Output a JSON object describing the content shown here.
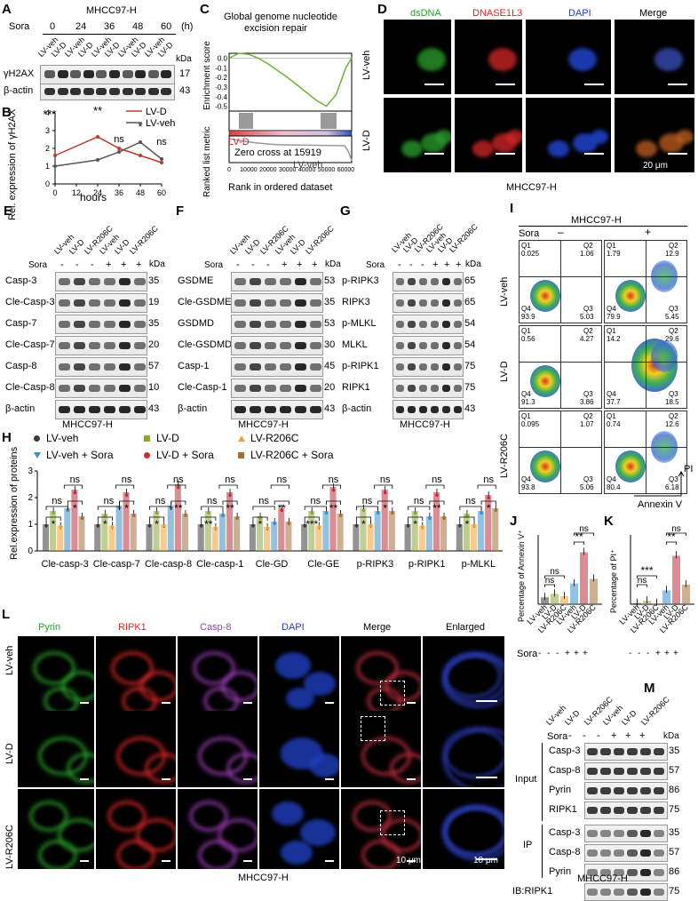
{
  "panels": {
    "A": {
      "letter": "A",
      "title": "MHCC97-H",
      "sora_label": "Sora",
      "timepoints": [
        "0",
        "24",
        "36",
        "48",
        "60"
      ],
      "unit": "(h)",
      "lanes": [
        "LV-veh",
        "LV-D",
        "LV-veh",
        "LV-D",
        "LV-veh",
        "LV-D",
        "LV-veh",
        "LV-D",
        "LV-veh",
        "LV-D"
      ],
      "kda": "kDa",
      "rows": [
        {
          "label": "γH2AX",
          "kda": "17"
        },
        {
          "label": "β-actin",
          "kda": "43"
        }
      ]
    },
    "B": {
      "letter": "B",
      "ylabel": "Rel. expression of γH2AX",
      "xlabel": "hours",
      "sig": [
        "***",
        "**",
        "ns",
        "*",
        "ns"
      ]
    },
    "C": {
      "letter": "C",
      "title_line1": "Global genome nucleotide",
      "title_line2": "excision repair",
      "ylabel_top": "Enrichment score",
      "ylabel_bottom": "Ranked list metric",
      "xlabel": "Rank in ordered dataset",
      "left_group": "LV-D",
      "right_group": "LV-veh",
      "zero_cross": "Zero cross at 15919"
    },
    "D": {
      "letter": "D",
      "columns": [
        "dsDNA",
        "DNASE1L3",
        "DAPI",
        "Merge"
      ],
      "column_colors": [
        "#2ca02c",
        "#d62728",
        "#1f3fbf",
        "#000000"
      ],
      "rows": [
        "LV-veh",
        "LV-D"
      ],
      "scale": "20 μm",
      "caption": "MHCC97-H"
    },
    "E": {
      "letter": "E",
      "lanes": [
        "LV-veh",
        "LV-D",
        "LV-R206C",
        "LV-veh",
        "LV-D",
        "LV-R206C"
      ],
      "sora_label": "Sora",
      "sora_signs": [
        "-",
        "-",
        "-",
        "+",
        "+",
        "+"
      ],
      "kda": "kDa",
      "rows": [
        {
          "label": "Casp-3",
          "kda": "35"
        },
        {
          "label": "Cle-Casp-3",
          "kda": "19"
        },
        {
          "label": "Casp-7",
          "kda": "35"
        },
        {
          "label": "Cle-Casp-7",
          "kda": "20"
        },
        {
          "label": "Casp-8",
          "kda": "57"
        },
        {
          "label": "Cle-Casp-8",
          "kda": "10"
        },
        {
          "label": "β-actin",
          "kda": "43"
        }
      ],
      "caption": "MHCC97-H"
    },
    "F": {
      "letter": "F",
      "lanes": [
        "LV-veh",
        "LV-D",
        "LV-R206C",
        "LV-veh",
        "LV-D",
        "LV-R206C"
      ],
      "sora_label": "Sora",
      "sora_signs": [
        "-",
        "-",
        "-",
        "+",
        "+",
        "+"
      ],
      "kda": "kDa",
      "rows": [
        {
          "label": "GSDME",
          "kda": "53"
        },
        {
          "label": "Cle-GSDME",
          "kda": "35"
        },
        {
          "label": "GSDMD",
          "kda": "53"
        },
        {
          "label": "Cle-GSDMD",
          "kda": "30"
        },
        {
          "label": "Casp-1",
          "kda": "45"
        },
        {
          "label": "Cle-Casp-1",
          "kda": "20"
        },
        {
          "label": "β-actin",
          "kda": "43"
        }
      ],
      "caption": "MHCC97-H"
    },
    "G": {
      "letter": "G",
      "lanes": [
        "LV-veh",
        "LV-D",
        "LV-R206C",
        "LV-veh",
        "LV-D",
        "LV-R206C"
      ],
      "sora_label": "Sora",
      "sora_signs": [
        "-",
        "-",
        "-",
        "+",
        "+",
        "+"
      ],
      "kda": "kDa",
      "rows": [
        {
          "label": "p-RIPK3",
          "kda": "65"
        },
        {
          "label": "RIPK3",
          "kda": "65"
        },
        {
          "label": "p-MLKL",
          "kda": "54"
        },
        {
          "label": "MLKL",
          "kda": "54"
        },
        {
          "label": "p-RIPK1",
          "kda": "75"
        },
        {
          "label": "RIPK1",
          "kda": "75"
        },
        {
          "label": "β-actin",
          "kda": "43"
        }
      ],
      "caption": "MHCC97-H"
    },
    "H": {
      "letter": "H",
      "ylabel": "Rel.expression of proteins",
      "legend": [
        "LV-veh",
        "LV-D",
        "LV-R206C",
        "LV-veh + Sora",
        "LV-D + Sora",
        "LV-R206C + Sora"
      ]
    },
    "I": {
      "letter": "I",
      "title": "MHCC97-H",
      "sora_label": "Sora",
      "sora_signs": [
        "–",
        "+"
      ],
      "rows": [
        "LV-veh",
        "LV-D",
        "LV-R206C"
      ],
      "quadrants": [
        [
          {
            "q1": "0.025",
            "q2": "1.06",
            "q3": "5.03",
            "q4": "93.9"
          },
          {
            "q1": "1.79",
            "q2": "12.9",
            "q3": "5.45",
            "q4": "79.9"
          }
        ],
        [
          {
            "q1": "0.56",
            "q2": "4.27",
            "q3": "3.86",
            "q4": "91.3"
          },
          {
            "q1": "14.2",
            "q2": "29.6",
            "q3": "18.5",
            "q4": "37.7"
          }
        ],
        [
          {
            "q1": "0.095",
            "q2": "1.07",
            "q3": "5.06",
            "q4": "93.8"
          },
          {
            "q1": "0.74",
            "q2": "12.6",
            "q3": "6.18",
            "q4": "80.4"
          }
        ]
      ],
      "xaxis": "Annexin V",
      "yaxis": "PI"
    },
    "J": {
      "letter": "J",
      "ylabel": "Percentage of Annexin V⁺",
      "groups": [
        "LV-veh",
        "LV-D",
        "LV-R206C",
        "LV-veh",
        "LV-D",
        "LV-R206C"
      ],
      "sig": [
        "ns",
        "ns",
        "ns",
        "**"
      ]
    },
    "K": {
      "letter": "K",
      "ylabel": "Percentage of PI⁺",
      "groups": [
        "LV-veh",
        "LV-D",
        "LV-R206C",
        "LV-veh",
        "LV-D",
        "LV-R206C"
      ],
      "sig": [
        "ns",
        "***",
        "ns",
        "**"
      ]
    },
    "JK_sora": {
      "label": "Sora",
      "signs": [
        "-",
        "-",
        "-",
        "+",
        "+",
        "+"
      ]
    },
    "L": {
      "letter": "L",
      "columns": [
        "Pyrin",
        "RIPK1",
        "Casp-8",
        "DAPI",
        "Merge",
        "Enlarged"
      ],
      "column_colors": [
        "#2ca02c",
        "#d62728",
        "#9b3fb5",
        "#1f3fbf",
        "#000000",
        "#000000"
      ],
      "rows": [
        "LV-veh",
        "LV-D",
        "LV-R206C"
      ],
      "scale1": "10 μm",
      "scale2": "10 μm",
      "caption": "MHCC97-H"
    },
    "M": {
      "letter": "M",
      "lanes": [
        "LV-veh",
        "LV-D",
        "LV-R206C",
        "LV-veh",
        "LV-D",
        "LV-R206C"
      ],
      "sora_label": "Sora",
      "sora_signs": [
        "-",
        "-",
        "-",
        "+",
        "+",
        "+"
      ],
      "kda": "kDa",
      "input_label": "Input",
      "ip_label": "IP",
      "input_rows": [
        {
          "label": "Casp-3",
          "kda": "35"
        },
        {
          "label": "Casp-8",
          "kda": "57"
        },
        {
          "label": "Pyrin",
          "kda": "86"
        },
        {
          "label": "RIPK1",
          "kda": "75"
        }
      ],
      "ip_rows": [
        {
          "label": "Casp-3",
          "kda": "35"
        },
        {
          "label": "Casp-8",
          "kda": "57"
        },
        {
          "label": "Pyrin",
          "kda": "86"
        },
        {
          "label": "IB:RIPK1",
          "kda": "75"
        }
      ],
      "caption": "MHCC97-H"
    }
  },
  "chart_data": [
    {
      "panel": "B",
      "type": "line",
      "x": [
        0,
        24,
        36,
        48,
        60
      ],
      "xlabel": "hours",
      "ylabel": "Rel. expression of γH2AX",
      "xlim": [
        0,
        60
      ],
      "ylim": [
        0,
        4
      ],
      "xticks": [
        0,
        12,
        24,
        36,
        48,
        60
      ],
      "yticks": [
        0,
        1,
        2,
        3,
        4
      ],
      "series": [
        {
          "name": "LV-D",
          "color": "#c0392b",
          "values": [
            1.6,
            2.65,
            2.0,
            1.6,
            1.2
          ]
        },
        {
          "name": "LV-veh",
          "color": "#555555",
          "values": [
            1.0,
            1.35,
            1.8,
            2.35,
            1.4
          ]
        }
      ]
    },
    {
      "panel": "C",
      "type": "line",
      "x": [
        0,
        5000,
        10000,
        15000,
        20000,
        25000,
        30000,
        35000,
        40000,
        45000,
        50000,
        55000,
        60000,
        63000
      ],
      "ylabel": "Enrichment score",
      "xlabel": "Rank in ordered dataset",
      "xticks": [
        0,
        10000,
        20000,
        30000,
        40000,
        50000,
        60000
      ],
      "yticks": [
        0.0,
        -0.1,
        -0.2,
        -0.3,
        -0.4,
        -0.5
      ],
      "ylim": [
        -0.55,
        0.05
      ],
      "series": [
        {
          "name": "",
          "color": "#6ab52f",
          "values": [
            0.0,
            0.05,
            0.04,
            0.0,
            -0.06,
            -0.13,
            -0.2,
            -0.28,
            -0.36,
            -0.44,
            -0.5,
            -0.38,
            -0.1,
            0.0
          ]
        }
      ]
    },
    {
      "panel": "H",
      "type": "bar",
      "categories": [
        "Cle-casp-3",
        "Cle-casp-7",
        "Cle-casp-8",
        "Cle-casp-1",
        "Cle-GD",
        "Cle-GE",
        "p-RIPK3",
        "p-RIPK1",
        "p-MLKL"
      ],
      "ylabel": "Rel.expression of proteins",
      "ylim": [
        0,
        3
      ],
      "yticks": [
        0,
        1,
        2,
        3
      ],
      "series": [
        {
          "name": "LV-veh",
          "color": "#3a3a3a",
          "values": [
            1.0,
            1.0,
            1.0,
            1.0,
            1.0,
            1.0,
            1.0,
            1.0,
            1.0
          ]
        },
        {
          "name": "LV-D",
          "color": "#8aa63a",
          "values": [
            1.5,
            1.4,
            1.5,
            1.5,
            1.3,
            1.5,
            1.6,
            1.5,
            1.4
          ]
        },
        {
          "name": "LV-R206C",
          "color": "#f0a030",
          "values": [
            0.95,
            0.95,
            1.0,
            0.9,
            0.9,
            0.95,
            1.0,
            0.95,
            1.0
          ]
        },
        {
          "name": "LV-veh + Sora",
          "color": "#3a8fc8",
          "values": [
            1.6,
            1.7,
            1.7,
            1.4,
            1.1,
            1.5,
            1.5,
            1.3,
            1.5
          ]
        },
        {
          "name": "LV-D + Sora",
          "color": "#c0303a",
          "values": [
            2.3,
            2.2,
            2.5,
            2.2,
            1.6,
            2.4,
            2.3,
            2.2,
            2.1
          ]
        },
        {
          "name": "LV-R206C + Sora",
          "color": "#a0703a",
          "values": [
            1.3,
            1.4,
            1.4,
            1.3,
            1.1,
            1.4,
            1.5,
            1.3,
            1.6
          ]
        }
      ],
      "sig_left": [
        "*",
        "*",
        "*",
        "**",
        "*",
        "***",
        "*",
        "*",
        "*"
      ],
      "sig_right": [
        "*",
        "*",
        "**",
        "**",
        "**",
        "**",
        "*",
        "**",
        "*"
      ]
    },
    {
      "panel": "J",
      "type": "bar",
      "categories": [
        "LV-veh",
        "LV-D",
        "LV-R206C",
        "LV-veh",
        "LV-D",
        "LV-R206C"
      ],
      "ylabel": "Percentage of Annexin V⁺",
      "ylim": [
        0,
        60
      ],
      "values": [
        6,
        9,
        7,
        18,
        45,
        22
      ],
      "colors": [
        "#3a3a3a",
        "#8aa63a",
        "#f0a030",
        "#3a8fc8",
        "#c0303a",
        "#a0703a"
      ]
    },
    {
      "panel": "K",
      "type": "bar",
      "categories": [
        "LV-veh",
        "LV-D",
        "LV-R206C",
        "LV-veh",
        "LV-D",
        "LV-R206C"
      ],
      "ylabel": "Percentage of PI⁺",
      "ylim": [
        0,
        60
      ],
      "values": [
        1,
        3,
        1,
        12,
        42,
        17
      ],
      "colors": [
        "#3a3a3a",
        "#8aa63a",
        "#f0a030",
        "#3a8fc8",
        "#c0303a",
        "#a0703a"
      ]
    }
  ]
}
